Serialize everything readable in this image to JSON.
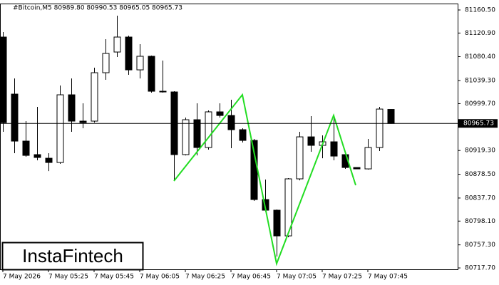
{
  "chart_data": {
    "type": "candlestick",
    "title": "#Bitcoin,M5  80989.80 80990.53 80965.05 80965.73",
    "watermark": "InstaFintech",
    "categories": [
      "7 May 2026",
      null,
      null,
      null,
      "7 May 05:25",
      null,
      null,
      null,
      "7 May 05:45",
      null,
      null,
      null,
      "7 May 06:05",
      null,
      null,
      null,
      "7 May 06:25",
      null,
      null,
      null,
      "7 May 06:45",
      null,
      null,
      null,
      "7 May 07:05",
      null,
      null,
      null,
      "7 May 07:25",
      null,
      null,
      null,
      "7 May 07:45",
      null,
      null
    ],
    "open": [
      81114.0,
      81016.1,
      80935.4,
      80912.2,
      80906.0,
      80898.7,
      81014.9,
      80969.7,
      80969.7,
      81052.8,
      81088.3,
      81114.0,
      81057.7,
      81081.0,
      81021.0,
      81019.8,
      80912.2,
      80972.1,
      80924.4,
      80985.6,
      80979.4,
      80955.0,
      80936.6,
      80835.1,
      80816.8,
      80772.7,
      80870.6,
      80942.7,
      80928.1,
      80934.2,
      80912.2,
      80890.1,
      80887.7,
      80924.4,
      80989.8
    ],
    "high": [
      81122.6,
      81043.0,
      80969.7,
      80994.1,
      80914.6,
      81030.8,
      81043.0,
      81000.2,
      81061.4,
      81110.3,
      81150.7,
      81116.4,
      81101.8,
      81082.2,
      81073.6,
      81021.0,
      80975.8,
      81000.2,
      80988.0,
      81000.2,
      81006.4,
      80957.4,
      80939.1,
      80869.4,
      80818.0,
      80871.8,
      80951.3,
      80978.2,
      80945.2,
      80975.8,
      80914.6,
      80890.1,
      80939.1,
      80994.1,
      80990.53
    ],
    "low": [
      80951.3,
      80914.6,
      80908.5,
      80902.4,
      80884.0,
      80896.3,
      80951.3,
      80957.4,
      80967.2,
      81040.6,
      81079.7,
      81049.2,
      81043.0,
      81018.6,
      81018.6,
      80868.1,
      80910.9,
      80910.9,
      80920.7,
      80975.8,
      80923.2,
      80933.0,
      80832.7,
      80814.3,
      80737.2,
      80770.3,
      80868.1,
      80917.1,
      80906.0,
      80902.4,
      80887.7,
      80887.7,
      80886.5,
      80918.3,
      80965.05
    ],
    "close": [
      80967.2,
      80935.4,
      80910.9,
      80907.3,
      80898.7,
      81014.9,
      80969.7,
      80967.2,
      81052.8,
      81085.9,
      81114.0,
      81057.7,
      81081.0,
      81021.0,
      81019.8,
      80912.2,
      80972.1,
      80924.4,
      80985.6,
      80979.4,
      80955.0,
      80936.6,
      80835.1,
      80816.8,
      80772.7,
      80870.6,
      80942.7,
      80928.1,
      80934.2,
      80909.7,
      80890.1,
      80887.7,
      80924.4,
      80990.4,
      80965.73
    ],
    "current_price": 80965.73,
    "ylim": [
      80715.3,
      81171.5
    ],
    "yticks": [
      {
        "value": 81160.5,
        "label": "81160.50"
      },
      {
        "value": 81120.9,
        "label": "81120.90"
      },
      {
        "value": 81080.4,
        "label": "81080.40"
      },
      {
        "value": 81039.3,
        "label": "81039.30"
      },
      {
        "value": 80999.7,
        "label": "80999.70"
      },
      {
        "value": 80919.3,
        "label": "80919.30"
      },
      {
        "value": 80878.5,
        "label": "80878.50"
      },
      {
        "value": 80837.7,
        "label": "80837.70"
      },
      {
        "value": 80798.1,
        "label": "80798.10"
      },
      {
        "value": 80757.3,
        "label": "80757.30"
      },
      {
        "value": 80717.7,
        "label": "80717.70"
      }
    ]
  }
}
